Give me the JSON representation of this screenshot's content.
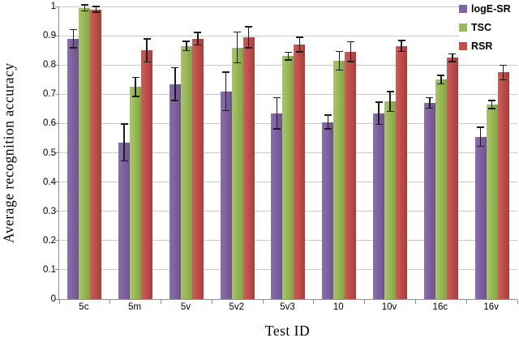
{
  "chart_data": {
    "type": "bar",
    "title": "",
    "xlabel": "Test ID",
    "ylabel": "Average recognition accuracy",
    "categories": [
      "5c",
      "5m",
      "5v",
      "5v2",
      "5v3",
      "10",
      "10v",
      "16c",
      "16v"
    ],
    "series": [
      {
        "name": "logE-SR",
        "color": "#8064A2",
        "values": [
          0.89,
          0.535,
          0.735,
          0.71,
          0.635,
          0.605,
          0.635,
          0.67,
          0.555
        ],
        "errors": [
          0.033,
          0.065,
          0.058,
          0.068,
          0.055,
          0.026,
          0.04,
          0.02,
          0.035
        ]
      },
      {
        "name": "TSC",
        "color": "#9BBB59",
        "values": [
          0.995,
          0.725,
          0.865,
          0.86,
          0.83,
          0.815,
          0.675,
          0.75,
          0.665
        ],
        "errors": [
          0.012,
          0.035,
          0.018,
          0.055,
          0.015,
          0.034,
          0.036,
          0.016,
          0.016
        ]
      },
      {
        "name": "RSR",
        "color": "#C0504D",
        "values": [
          0.99,
          0.85,
          0.89,
          0.895,
          0.87,
          0.845,
          0.865,
          0.825,
          0.775
        ],
        "errors": [
          0.012,
          0.042,
          0.023,
          0.038,
          0.027,
          0.036,
          0.021,
          0.015,
          0.028
        ]
      }
    ],
    "ylim": [
      0,
      1
    ],
    "ytick_step": 0.1,
    "ytick_labels": [
      "0",
      "0.1",
      "0.2",
      "0.3",
      "0.4",
      "0.5",
      "0.6",
      "0.7",
      "0.8",
      "0.9",
      "1"
    ],
    "grid": true,
    "error_bars": true,
    "legend_position": "top-right"
  }
}
